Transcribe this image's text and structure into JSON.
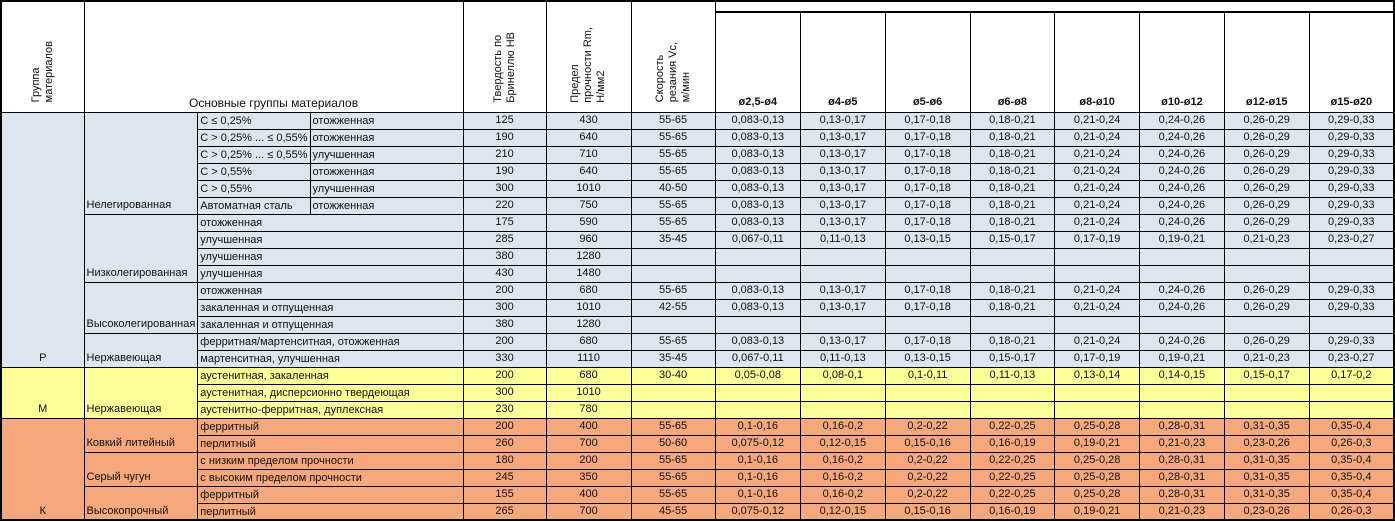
{
  "header": {
    "group_col": "Группа\nматериалов",
    "main_groups_col": "Основные группы материалов",
    "hardness_col": "Твердость по\nБринеллю HB",
    "strength_col": "Предел\nпрочности Rm,\nН/мм2",
    "speed_col": "Скорость\nрезания Vc,\nм/мин",
    "diameters": [
      "ø2,5-ø4",
      "ø4-ø5",
      "ø5-ø6",
      "ø6-ø8",
      "ø8-ø10",
      "ø10-ø12",
      "ø12-ø15",
      "ø15-ø20"
    ]
  },
  "colors": {
    "p_group_bg": "#DCE6F1",
    "m_group_bg": "#FFFF99",
    "k_group_bg": "#F4A87B",
    "border": "#000000"
  },
  "table": {
    "groups": [
      {
        "letter": "Р",
        "color": "#DCE6F1",
        "categories": [
          {
            "label": "Нелегированная",
            "rows": [
              {
                "spec": "C ≤ 0,25%",
                "state": "отожженная",
                "hb": "125",
                "rm": "430",
                "vc": "55-65",
                "feeds": [
                  "0,083-0,13",
                  "0,13-0,17",
                  "0,17-0,18",
                  "0,18-0,21",
                  "0,21-0,24",
                  "0,24-0,26",
                  "0,26-0,29",
                  "0,29-0,33"
                ]
              },
              {
                "spec": "C > 0,25% ... ≤ 0,55%",
                "state": "отожженная",
                "hb": "190",
                "rm": "640",
                "vc": "55-65",
                "feeds": [
                  "0,083-0,13",
                  "0,13-0,17",
                  "0,17-0,18",
                  "0,18-0,21",
                  "0,21-0,24",
                  "0,24-0,26",
                  "0,26-0,29",
                  "0,29-0,33"
                ]
              },
              {
                "spec": "C > 0,25% ... ≤ 0,55%",
                "state": "улучшенная",
                "hb": "210",
                "rm": "710",
                "vc": "55-65",
                "feeds": [
                  "0,083-0,13",
                  "0,13-0,17",
                  "0,17-0,18",
                  "0,18-0,21",
                  "0,21-0,24",
                  "0,24-0,26",
                  "0,26-0,29",
                  "0,29-0,33"
                ]
              },
              {
                "spec": "C > 0,55%",
                "state": "отожженная",
                "hb": "190",
                "rm": "640",
                "vc": "55-65",
                "feeds": [
                  "0,083-0,13",
                  "0,13-0,17",
                  "0,17-0,18",
                  "0,18-0,21",
                  "0,21-0,24",
                  "0,24-0,26",
                  "0,26-0,29",
                  "0,29-0,33"
                ]
              },
              {
                "spec": "C > 0,55%",
                "state": "улучшенная",
                "hb": "300",
                "rm": "1010",
                "vc": "40-50",
                "feeds": [
                  "0,083-0,13",
                  "0,13-0,17",
                  "0,17-0,18",
                  "0,18-0,21",
                  "0,21-0,24",
                  "0,24-0,26",
                  "0,26-0,29",
                  "0,29-0,33"
                ]
              },
              {
                "spec": "Автоматная сталь",
                "state": "отожженная",
                "hb": "220",
                "rm": "750",
                "vc": "55-65",
                "feeds": [
                  "0,083-0,13",
                  "0,13-0,17",
                  "0,17-0,18",
                  "0,18-0,21",
                  "0,21-0,24",
                  "0,24-0,26",
                  "0,26-0,29",
                  "0,29-0,33"
                ]
              }
            ]
          },
          {
            "label": "Низколегированная",
            "rows": [
              {
                "spec": null,
                "state": "отожженная",
                "hb": "175",
                "rm": "590",
                "vc": "55-65",
                "feeds": [
                  "0,083-0,13",
                  "0,13-0,17",
                  "0,17-0,18",
                  "0,18-0,21",
                  "0,21-0,24",
                  "0,24-0,26",
                  "0,26-0,29",
                  "0,29-0,33"
                ]
              },
              {
                "spec": null,
                "state": "улучшенная",
                "hb": "285",
                "rm": "960",
                "vc": "35-45",
                "feeds": [
                  "0,067-0,11",
                  "0,11-0,13",
                  "0,13-0,15",
                  "0,15-0,17",
                  "0,17-0,19",
                  "0,19-0,21",
                  "0,21-0,23",
                  "0,23-0,27"
                ]
              },
              {
                "spec": null,
                "state": "улучшенная",
                "hb": "380",
                "rm": "1280",
                "vc": "",
                "feeds": [
                  "",
                  "",
                  "",
                  "",
                  "",
                  "",
                  "",
                  ""
                ]
              },
              {
                "spec": null,
                "state": "улучшенная",
                "hb": "430",
                "rm": "1480",
                "vc": "",
                "feeds": [
                  "",
                  "",
                  "",
                  "",
                  "",
                  "",
                  "",
                  ""
                ]
              }
            ]
          },
          {
            "label": "Высоколегированная",
            "rows": [
              {
                "spec": null,
                "state": "отожженная",
                "hb": "200",
                "rm": "680",
                "vc": "55-65",
                "feeds": [
                  "0,083-0,13",
                  "0,13-0,17",
                  "0,17-0,18",
                  "0,18-0,21",
                  "0,21-0,24",
                  "0,24-0,26",
                  "0,26-0,29",
                  "0,29-0,33"
                ]
              },
              {
                "spec": null,
                "state": "закаленная и отпущенная",
                "hb": "300",
                "rm": "1010",
                "vc": "42-55",
                "feeds": [
                  "0,083-0,13",
                  "0,13-0,17",
                  "0,17-0,18",
                  "0,18-0,21",
                  "0,21-0,24",
                  "0,24-0,26",
                  "0,26-0,29",
                  "0,29-0,33"
                ]
              },
              {
                "spec": null,
                "state": "закаленная и отпущенная",
                "hb": "380",
                "rm": "1280",
                "vc": "",
                "feeds": [
                  "",
                  "",
                  "",
                  "",
                  "",
                  "",
                  "",
                  ""
                ]
              }
            ]
          },
          {
            "label": "Нержавеющая",
            "rows": [
              {
                "spec": null,
                "state": "ферритная/мартенситная, отожженная",
                "hb": "200",
                "rm": "680",
                "vc": "55-65",
                "feeds": [
                  "0,083-0,13",
                  "0,13-0,17",
                  "0,17-0,18",
                  "0,18-0,21",
                  "0,21-0,24",
                  "0,24-0,26",
                  "0,26-0,29",
                  "0,29-0,33"
                ]
              },
              {
                "spec": null,
                "state": "мартенситная, улучшенная",
                "hb": "330",
                "rm": "1110",
                "vc": "35-45",
                "feeds": [
                  "0,067-0,11",
                  "0,11-0,13",
                  "0,13-0,15",
                  "0,15-0,17",
                  "0,17-0,19",
                  "0,19-0,21",
                  "0,21-0,23",
                  "0,23-0,27"
                ]
              }
            ]
          }
        ]
      },
      {
        "letter": "М",
        "color": "#FFFF99",
        "categories": [
          {
            "label": "Нержавеющая",
            "rows": [
              {
                "spec": null,
                "state": "аустенитная, закаленная",
                "hb": "200",
                "rm": "680",
                "vc": "30-40",
                "feeds": [
                  "0,05-0,08",
                  "0,08-0,1",
                  "0,1-0,11",
                  "0,11-0,13",
                  "0,13-0,14",
                  "0,14-0,15",
                  "0,15-0,17",
                  "0,17-0,2"
                ]
              },
              {
                "spec": null,
                "state": "аустенитная, дисперсионно твердеющая",
                "hb": "300",
                "rm": "1010",
                "vc": "",
                "feeds": [
                  "",
                  "",
                  "",
                  "",
                  "",
                  "",
                  "",
                  ""
                ]
              },
              {
                "spec": null,
                "state": "аустенитно-ферритная, дуплексная",
                "hb": "230",
                "rm": "780",
                "vc": "",
                "feeds": [
                  "",
                  "",
                  "",
                  "",
                  "",
                  "",
                  "",
                  ""
                ]
              }
            ]
          }
        ]
      },
      {
        "letter": "К",
        "color": "#F4A87B",
        "categories": [
          {
            "label": "Ковкий литейный",
            "rows": [
              {
                "spec": null,
                "state": "ферритный",
                "hb": "200",
                "rm": "400",
                "vc": "55-65",
                "feeds": [
                  "0,1-0,16",
                  "0,16-0,2",
                  "0,2-0,22",
                  "0,22-0,25",
                  "0,25-0,28",
                  "0,28-0,31",
                  "0,31-0,35",
                  "0,35-0,4"
                ]
              },
              {
                "spec": null,
                "state": "перлитный",
                "hb": "260",
                "rm": "700",
                "vc": "50-60",
                "feeds": [
                  "0,075-0,12",
                  "0,12-0,15",
                  "0,15-0,16",
                  "0,16-0,19",
                  "0,19-0,21",
                  "0,21-0,23",
                  "0,23-0,26",
                  "0,26-0,3"
                ]
              }
            ]
          },
          {
            "label": "Серый чугун",
            "rows": [
              {
                "spec": null,
                "state": "с низким пределом прочности",
                "hb": "180",
                "rm": "200",
                "vc": "55-65",
                "feeds": [
                  "0,1-0,16",
                  "0,16-0,2",
                  "0,2-0,22",
                  "0,22-0,25",
                  "0,25-0,28",
                  "0,28-0,31",
                  "0,31-0,35",
                  "0,35-0,4"
                ]
              },
              {
                "spec": null,
                "state": "с высоким пределом прочности",
                "hb": "245",
                "rm": "350",
                "vc": "55-65",
                "feeds": [
                  "0,1-0,16",
                  "0,16-0,2",
                  "0,2-0,22",
                  "0,22-0,25",
                  "0,25-0,28",
                  "0,28-0,31",
                  "0,31-0,35",
                  "0,35-0,4"
                ]
              }
            ]
          },
          {
            "label": "Высокопрочный",
            "rows": [
              {
                "spec": null,
                "state": "ферритный",
                "hb": "155",
                "rm": "400",
                "vc": "55-65",
                "feeds": [
                  "0,1-0,16",
                  "0,16-0,2",
                  "0,2-0,22",
                  "0,22-0,25",
                  "0,25-0,28",
                  "0,28-0,31",
                  "0,31-0,35",
                  "0,35-0,4"
                ]
              },
              {
                "spec": null,
                "state": "перлитный",
                "hb": "265",
                "rm": "700",
                "vc": "45-55",
                "feeds": [
                  "0,075-0,12",
                  "0,12-0,15",
                  "0,15-0,16",
                  "0,16-0,19",
                  "0,19-0,21",
                  "0,21-0,23",
                  "0,23-0,26",
                  "0,26-0,3"
                ]
              }
            ]
          }
        ]
      }
    ]
  }
}
